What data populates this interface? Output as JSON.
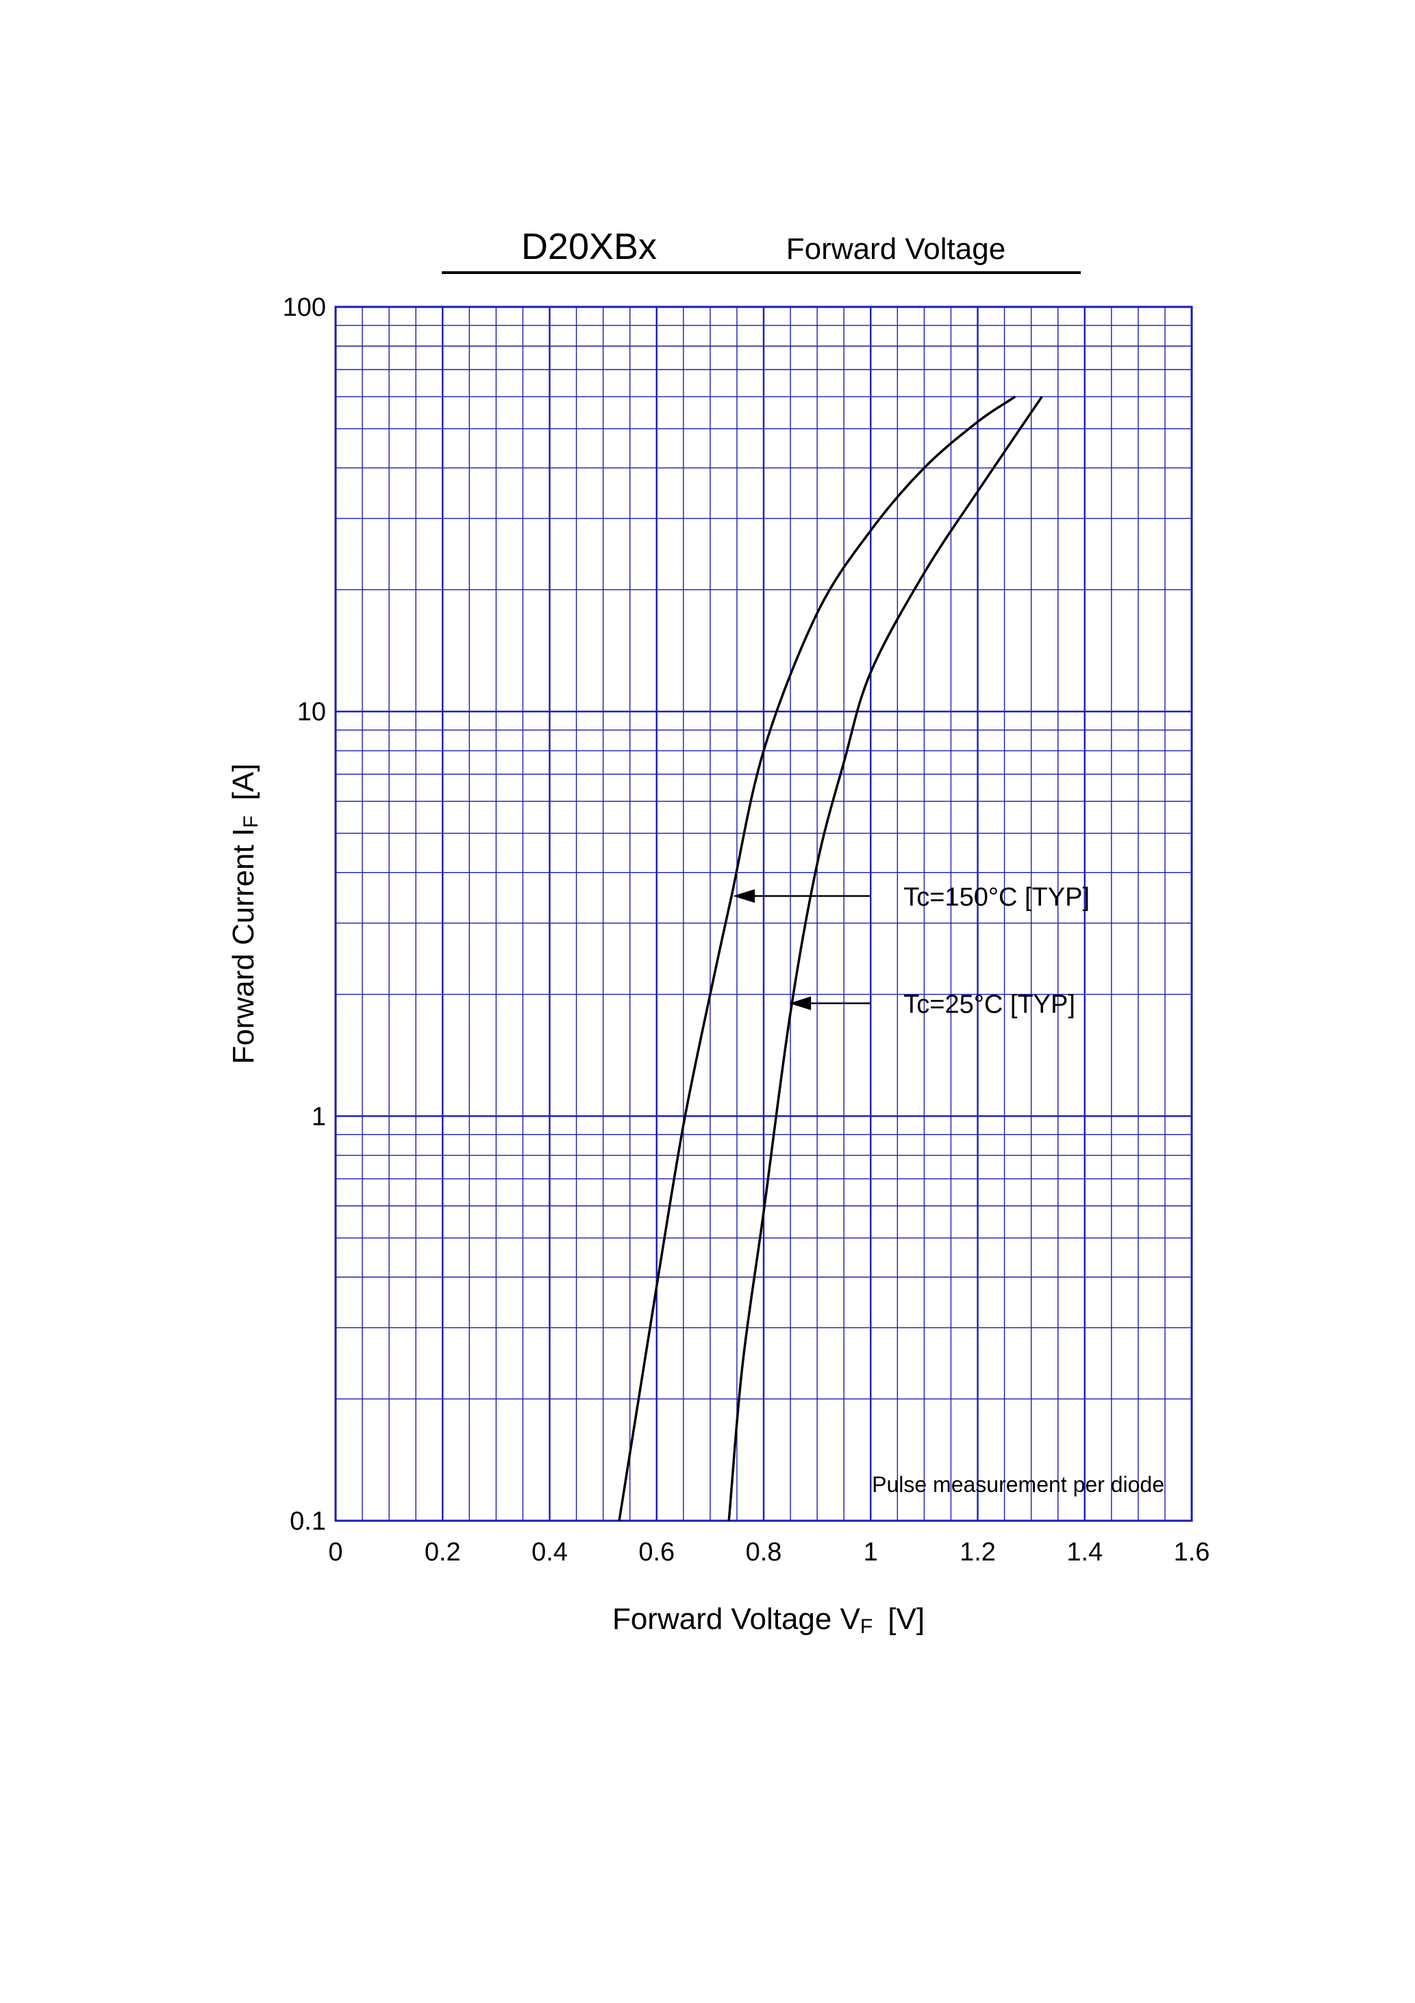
{
  "chart_data": {
    "type": "line",
    "title": "D20XBx",
    "subtitle": "Forward Voltage",
    "xlabel": {
      "main": "Forward Voltage V",
      "sub": "F",
      "unit": "[V]"
    },
    "ylabel": {
      "main": "Forward Current I",
      "sub": "F",
      "unit": "[A]"
    },
    "x_axis": {
      "scale": "linear",
      "range": [
        0,
        1.6
      ],
      "major_step": 0.2,
      "minor_step": 0.05,
      "tick_labels": [
        "0",
        "0.2",
        "0.4",
        "0.6",
        "0.8",
        "1",
        "1.2",
        "1.4",
        "1.6"
      ]
    },
    "y_axis": {
      "scale": "log",
      "range": [
        0.1,
        100
      ],
      "tick_values": [
        0.1,
        1,
        10,
        100
      ],
      "tick_labels": [
        "0.1",
        "1",
        "10",
        "100"
      ]
    },
    "grid": true,
    "note": "Pulse measurement per diode",
    "series": [
      {
        "name": "Tc=150°C [TYP]",
        "x": [
          0.53,
          0.6,
          0.65,
          0.7,
          0.74,
          0.8,
          0.9,
          1.0,
          1.1,
          1.2,
          1.27
        ],
        "y": [
          0.1,
          0.38,
          0.95,
          2.0,
          3.5,
          8.0,
          17.5,
          28.0,
          40.0,
          52.0,
          60.0
        ]
      },
      {
        "name": "Tc=25°C [TYP]",
        "x": [
          0.735,
          0.76,
          0.8,
          0.85,
          0.9,
          0.95,
          1.0,
          1.1,
          1.2,
          1.32
        ],
        "y": [
          0.1,
          0.24,
          0.58,
          1.8,
          4.2,
          7.5,
          12.5,
          22.0,
          35.0,
          60.0
        ]
      }
    ],
    "annotations": [
      {
        "prefix": "Tc",
        "text": "=150°C [TYP]",
        "series": 0,
        "arrow_at": [
          0.74,
          3.5
        ],
        "label_at": [
          1.0,
          3.5
        ]
      },
      {
        "prefix": "Tc",
        "text": "=25°C [TYP]",
        "series": 1,
        "arrow_at": [
          0.845,
          1.9
        ],
        "label_at": [
          1.0,
          1.9
        ]
      }
    ],
    "colors": {
      "grid": "#1a1ab8",
      "curve": "#000000",
      "text": "#000000"
    }
  }
}
